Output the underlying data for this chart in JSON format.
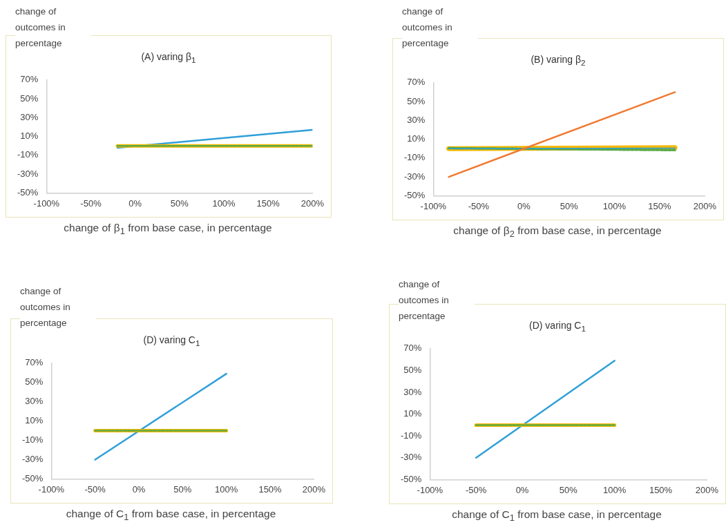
{
  "chart_data": [
    {
      "type": "line",
      "title": "(A) varing β$_{1}$",
      "xlabel": "change of β$_{1}$ from base case, in percentage",
      "ylabel": "change of outcomes in percentage",
      "marker": "none",
      "xlim": [
        -100,
        200
      ],
      "ylim": [
        -50,
        70
      ],
      "xticks": [
        {
          "value": -100,
          "label": "-100%"
        },
        {
          "value": -50,
          "label": "-50%"
        },
        {
          "value": 0,
          "label": "0%"
        },
        {
          "value": 50,
          "label": "50%"
        },
        {
          "value": 100,
          "label": "100%"
        },
        {
          "value": 150,
          "label": "150%"
        },
        {
          "value": 200,
          "label": "200%"
        }
      ],
      "yticks": [
        {
          "value": -50,
          "label": "-50%"
        },
        {
          "value": -30,
          "label": "-30%"
        },
        {
          "value": -10,
          "label": "-10%"
        },
        {
          "value": 10,
          "label": "10%"
        },
        {
          "value": 30,
          "label": "30%"
        },
        {
          "value": 50,
          "label": "50%"
        },
        {
          "value": 70,
          "label": "70%"
        }
      ],
      "series": [
        {
          "color": "#2e9fd8",
          "x": [
            -20,
            200
          ],
          "values": [
            -2,
            17
          ]
        },
        {
          "color": "#f5b800",
          "x": [
            -20,
            200
          ],
          "values": [
            0,
            0
          ]
        },
        {
          "color": "#5aab46",
          "line_style": "dashed",
          "x": [
            -20,
            200
          ],
          "values": [
            0,
            0
          ]
        }
      ]
    },
    {
      "type": "line",
      "title": "(B) varing β$_{2}$",
      "xlabel": "change of β$_{2}$ from base case, in percentage",
      "ylabel": "change of outcomes in percentage",
      "marker": "none",
      "xlim": [
        -100,
        200
      ],
      "ylim": [
        -50,
        70
      ],
      "xticks": [
        {
          "value": -100,
          "label": "-100%"
        },
        {
          "value": -50,
          "label": "-50%"
        },
        {
          "value": 0,
          "label": "0%"
        },
        {
          "value": 50,
          "label": "50%"
        },
        {
          "value": 100,
          "label": "100%"
        },
        {
          "value": 150,
          "label": "150%"
        },
        {
          "value": 200,
          "label": "200%"
        }
      ],
      "yticks": [
        {
          "value": -50,
          "label": "-50%"
        },
        {
          "value": -30,
          "label": "-30%"
        },
        {
          "value": -10,
          "label": "-10%"
        },
        {
          "value": 10,
          "label": "10%"
        },
        {
          "value": 30,
          "label": "30%"
        },
        {
          "value": 50,
          "label": "50%"
        },
        {
          "value": 70,
          "label": "70%"
        }
      ],
      "series": [
        {
          "color": "#f5b800",
          "x": [
            -83,
            167
          ],
          "values": [
            0,
            1
          ]
        },
        {
          "color": "#5aab46",
          "line_style": "dashed",
          "x": [
            -83,
            167
          ],
          "values": [
            0.5,
            -1.5
          ]
        },
        {
          "color": "#2e9fd8",
          "x": [
            -83,
            167
          ],
          "values": [
            0,
            0.5
          ]
        },
        {
          "color": "#f07a32",
          "x": [
            -83,
            0,
            167
          ],
          "values": [
            -30,
            0,
            60
          ]
        }
      ]
    },
    {
      "type": "line",
      "title": "(D) varing C$_{1}$",
      "xlabel": "change of C$_{1}$ from base case, in percentage",
      "ylabel": "change of outcomes in percentage",
      "marker": "none",
      "xlim": [
        -100,
        200
      ],
      "ylim": [
        -50,
        70
      ],
      "xticks": [
        {
          "value": -100,
          "label": "-100%"
        },
        {
          "value": -50,
          "label": "-50%"
        },
        {
          "value": 0,
          "label": "0%"
        },
        {
          "value": 50,
          "label": "50%"
        },
        {
          "value": 100,
          "label": "100%"
        },
        {
          "value": 150,
          "label": "150%"
        },
        {
          "value": 200,
          "label": "200%"
        }
      ],
      "yticks": [
        {
          "value": -50,
          "label": "-50%"
        },
        {
          "value": -30,
          "label": "-30%"
        },
        {
          "value": -10,
          "label": "-10%"
        },
        {
          "value": 10,
          "label": "10%"
        },
        {
          "value": 30,
          "label": "30%"
        },
        {
          "value": 50,
          "label": "50%"
        },
        {
          "value": 70,
          "label": "70%"
        }
      ],
      "series": [
        {
          "color": "#2e9fd8",
          "x": [
            -50,
            100
          ],
          "values": [
            -30,
            59
          ]
        },
        {
          "color": "#f5b800",
          "x": [
            -50,
            100
          ],
          "values": [
            0,
            0
          ]
        },
        {
          "color": "#5aab46",
          "line_style": "dashed",
          "x": [
            -50,
            100
          ],
          "values": [
            0,
            0
          ]
        }
      ]
    },
    {
      "type": "line",
      "title": "(D) varing C$_{1}$",
      "xlabel": "change of C$_{1}$ from base case, in percentage",
      "ylabel": "change of outcomes in percentage",
      "marker": "none",
      "xlim": [
        -100,
        200
      ],
      "ylim": [
        -50,
        70
      ],
      "xticks": [
        {
          "value": -100,
          "label": "-100%"
        },
        {
          "value": -50,
          "label": "-50%"
        },
        {
          "value": 0,
          "label": "0%"
        },
        {
          "value": 50,
          "label": "50%"
        },
        {
          "value": 100,
          "label": "100%"
        },
        {
          "value": 150,
          "label": "150%"
        },
        {
          "value": 200,
          "label": "200%"
        }
      ],
      "yticks": [
        {
          "value": -50,
          "label": "-50%"
        },
        {
          "value": -30,
          "label": "-30%"
        },
        {
          "value": -10,
          "label": "-10%"
        },
        {
          "value": 10,
          "label": "10%"
        },
        {
          "value": 30,
          "label": "30%"
        },
        {
          "value": 50,
          "label": "50%"
        },
        {
          "value": 70,
          "label": "70%"
        }
      ],
      "series": [
        {
          "color": "#2e9fd8",
          "x": [
            -50,
            100
          ],
          "values": [
            -30,
            59
          ]
        },
        {
          "color": "#f5b800",
          "x": [
            -50,
            100
          ],
          "values": [
            0,
            0
          ]
        },
        {
          "color": "#5aab46",
          "line_style": "dashed",
          "x": [
            -50,
            100
          ],
          "values": [
            0,
            0
          ]
        }
      ]
    }
  ]
}
